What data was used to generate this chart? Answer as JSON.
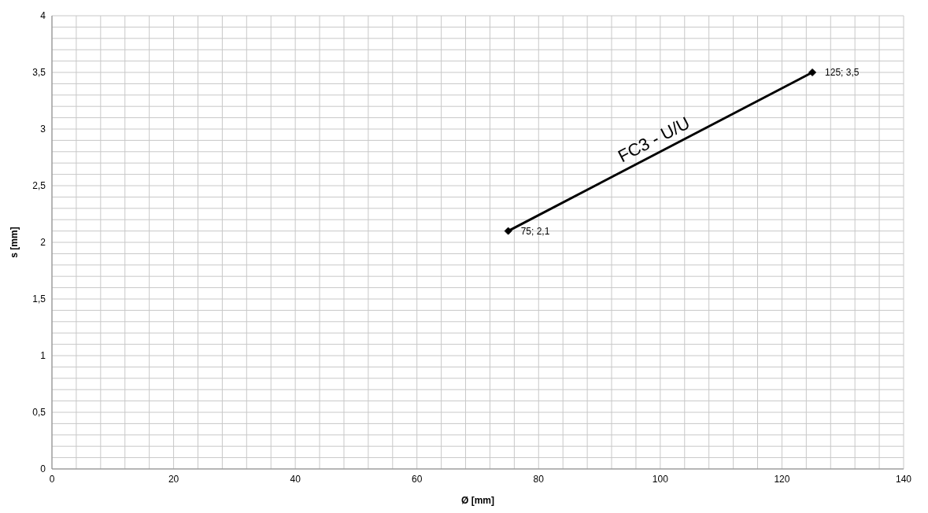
{
  "chart_data": {
    "type": "line",
    "xlabel": "Ø [mm]",
    "ylabel": "s [mm]",
    "xlim": [
      0,
      140
    ],
    "xticks": [
      0,
      {
        "value": 4,
        "label": null
      },
      {
        "value": 8,
        "label": null
      },
      {
        "value": 12,
        "label": null
      },
      {
        "value": 16,
        "label": null
      },
      20,
      {
        "value": 24,
        "label": null
      },
      {
        "value": 28,
        "label": null
      },
      {
        "value": 32,
        "label": null
      },
      {
        "value": 36,
        "label": null
      },
      40,
      {
        "value": 44,
        "label": null
      },
      {
        "value": 48,
        "label": null
      },
      {
        "value": 52,
        "label": null
      },
      {
        "value": 56,
        "label": null
      },
      60,
      {
        "value": 64,
        "label": null
      },
      {
        "value": 68,
        "label": null
      },
      {
        "value": 72,
        "label": null
      },
      {
        "value": 76,
        "label": null
      },
      80,
      {
        "value": 84,
        "label": null
      },
      {
        "value": 88,
        "label": null
      },
      {
        "value": 92,
        "label": null
      },
      {
        "value": 96,
        "label": null
      },
      100,
      {
        "value": 104,
        "label": null
      },
      {
        "value": 108,
        "label": null
      },
      {
        "value": 112,
        "label": null
      },
      {
        "value": 116,
        "label": null
      },
      120,
      {
        "value": 124,
        "label": null
      },
      {
        "value": 128,
        "label": null
      },
      {
        "value": 132,
        "label": null
      },
      {
        "value": 136,
        "label": null
      },
      140
    ],
    "ylim": [
      0,
      4
    ],
    "yticks": [
      0,
      {
        "value": 0.1,
        "label": null
      },
      {
        "value": 0.2,
        "label": null
      },
      {
        "value": 0.3,
        "label": null
      },
      {
        "value": 0.4,
        "label": null
      },
      {
        "value": 0.5,
        "label": "0,5"
      },
      {
        "value": 0.6,
        "label": null
      },
      {
        "value": 0.7,
        "label": null
      },
      {
        "value": 0.8,
        "label": null
      },
      {
        "value": 0.9,
        "label": null
      },
      1,
      {
        "value": 1.1,
        "label": null
      },
      {
        "value": 1.2,
        "label": null
      },
      {
        "value": 1.3,
        "label": null
      },
      {
        "value": 1.4,
        "label": null
      },
      {
        "value": 1.5,
        "label": "1,5"
      },
      {
        "value": 1.6,
        "label": null
      },
      {
        "value": 1.7,
        "label": null
      },
      {
        "value": 1.8,
        "label": null
      },
      {
        "value": 1.9,
        "label": null
      },
      2,
      {
        "value": 2.1,
        "label": null
      },
      {
        "value": 2.2,
        "label": null
      },
      {
        "value": 2.3,
        "label": null
      },
      {
        "value": 2.4,
        "label": null
      },
      {
        "value": 2.5,
        "label": "2,5"
      },
      {
        "value": 2.6,
        "label": null
      },
      {
        "value": 2.7,
        "label": null
      },
      {
        "value": 2.8,
        "label": null
      },
      {
        "value": 2.9,
        "label": null
      },
      3,
      {
        "value": 3.1,
        "label": null
      },
      {
        "value": 3.2,
        "label": null
      },
      {
        "value": 3.3,
        "label": null
      },
      {
        "value": 3.4,
        "label": null
      },
      {
        "value": 3.5,
        "label": "3,5"
      },
      {
        "value": 3.6,
        "label": null
      },
      {
        "value": 3.7,
        "label": null
      },
      {
        "value": 3.8,
        "label": null
      },
      {
        "value": 3.9,
        "label": null
      },
      4
    ],
    "grid": true,
    "marker": "diamond",
    "line_style": "solid",
    "series": [
      {
        "name": "FC3 - U/U",
        "color": "#000000",
        "x": [
          75,
          125
        ],
        "values": [
          2.1,
          3.5
        ],
        "value_labels": [
          "75; 2,1",
          "125; 3,5"
        ]
      }
    ]
  }
}
